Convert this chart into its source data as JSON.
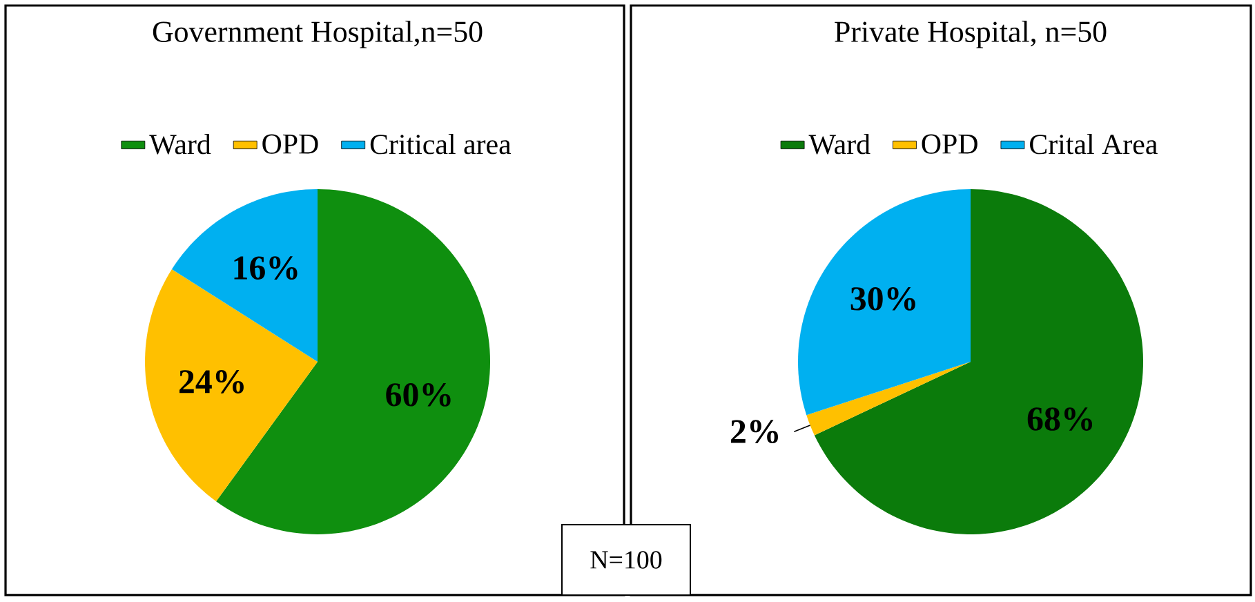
{
  "chart_data": [
    {
      "type": "pie",
      "title": "Government Hospital,n=50",
      "categories": [
        "Ward",
        "OPD",
        "Critical area"
      ],
      "values": [
        60,
        24,
        16
      ],
      "colors": [
        "#0f8f0f",
        "#ffc000",
        "#00b0f0"
      ],
      "value_labels": [
        "60%",
        "24%",
        "16%"
      ],
      "legend": "top",
      "annotations": [
        "N=100"
      ]
    },
    {
      "type": "pie",
      "title": "Private Hospital, n=50",
      "categories": [
        "Ward",
        "OPD",
        "Crital Area"
      ],
      "values": [
        68,
        2,
        30
      ],
      "colors": [
        "#0b7b0b",
        "#ffc000",
        "#00b0f0"
      ],
      "value_labels": [
        "68%",
        "2%",
        "30%"
      ],
      "legend": "top"
    }
  ]
}
